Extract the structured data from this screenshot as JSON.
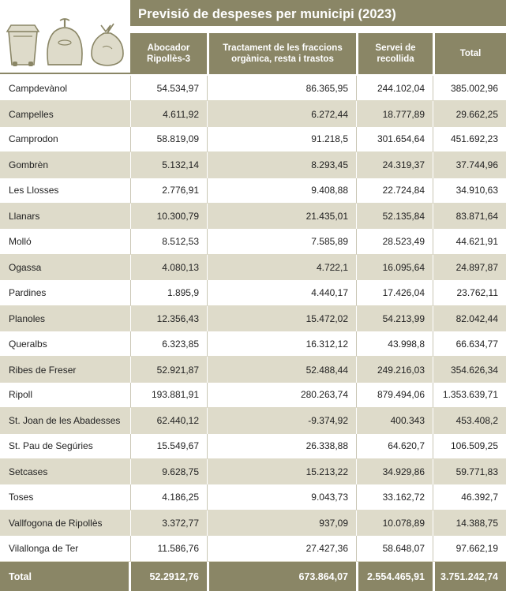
{
  "title": "Previsió de despeses per municipi (2023)",
  "icons": [
    "waste-bin-icon",
    "recycling-bell-container-icon",
    "garbage-bag-icon"
  ],
  "colors": {
    "header": "#8a8666",
    "shade": "#dedbca"
  },
  "columns": [
    "Abocador\nRipollès-3",
    "Tractament de les fraccions\norgànica, resta i trastos",
    "Servei de\nrecollida",
    "Total"
  ],
  "rows": [
    {
      "name": "Campdevànol",
      "v": [
        "54.534,97",
        "86.365,95",
        "244.102,04",
        "385.002,96"
      ]
    },
    {
      "name": "Campelles",
      "v": [
        "4.611,92",
        "6.272,44",
        "18.777,89",
        "29.662,25"
      ]
    },
    {
      "name": "Camprodon",
      "v": [
        "58.819,09",
        "91.218,5",
        "301.654,64",
        "451.692,23"
      ]
    },
    {
      "name": "Gombrèn",
      "v": [
        "5.132,14",
        "8.293,45",
        "24.319,37",
        "37.744,96"
      ]
    },
    {
      "name": "Les Llosses",
      "v": [
        "2.776,91",
        "9.408,88",
        "22.724,84",
        "34.910,63"
      ]
    },
    {
      "name": "Llanars",
      "v": [
        "10.300,79",
        "21.435,01",
        "52.135,84",
        "83.871,64"
      ]
    },
    {
      "name": "Molló",
      "v": [
        "8.512,53",
        "7.585,89",
        "28.523,49",
        "44.621,91"
      ]
    },
    {
      "name": "Ogassa",
      "v": [
        "4.080,13",
        "4.722,1",
        "16.095,64",
        "24.897,87"
      ]
    },
    {
      "name": "Pardines",
      "v": [
        "1.895,9",
        "4.440,17",
        "17.426,04",
        "23.762,11"
      ]
    },
    {
      "name": "Planoles",
      "v": [
        "12.356,43",
        "15.472,02",
        "54.213,99",
        "82.042,44"
      ]
    },
    {
      "name": "Queralbs",
      "v": [
        "6.323,85",
        "16.312,12",
        "43.998,8",
        "66.634,77"
      ]
    },
    {
      "name": "Ribes de Freser",
      "v": [
        "52.921,87",
        "52.488,44",
        "249.216,03",
        "354.626,34"
      ]
    },
    {
      "name": "Ripoll",
      "v": [
        "193.881,91",
        "280.263,74",
        "879.494,06",
        "1.353.639,71"
      ]
    },
    {
      "name": "St. Joan de les Abadesses",
      "v": [
        "62.440,12",
        "-9.374,92",
        "400.343",
        "453.408,2"
      ]
    },
    {
      "name": "St. Pau de Segúries",
      "v": [
        "15.549,67",
        "26.338,88",
        "64.620,7",
        "106.509,25"
      ]
    },
    {
      "name": "Setcases",
      "v": [
        "9.628,75",
        "15.213,22",
        "34.929,86",
        "59.771,83"
      ]
    },
    {
      "name": "Toses",
      "v": [
        "4.186,25",
        "9.043,73",
        "33.162,72",
        "46.392,7"
      ]
    },
    {
      "name": "Vallfogona de Ripollès",
      "v": [
        "3.372,77",
        "937,09",
        "10.078,89",
        "14.388,75"
      ]
    },
    {
      "name": "Vilallonga de Ter",
      "v": [
        "11.586,76",
        "27.427,36",
        "58.648,07",
        "97.662,19"
      ]
    }
  ],
  "total": {
    "name": "Total",
    "v": [
      "52.2912,76",
      "673.864,07",
      "2.554.465,91",
      "3.751.242,74"
    ]
  }
}
